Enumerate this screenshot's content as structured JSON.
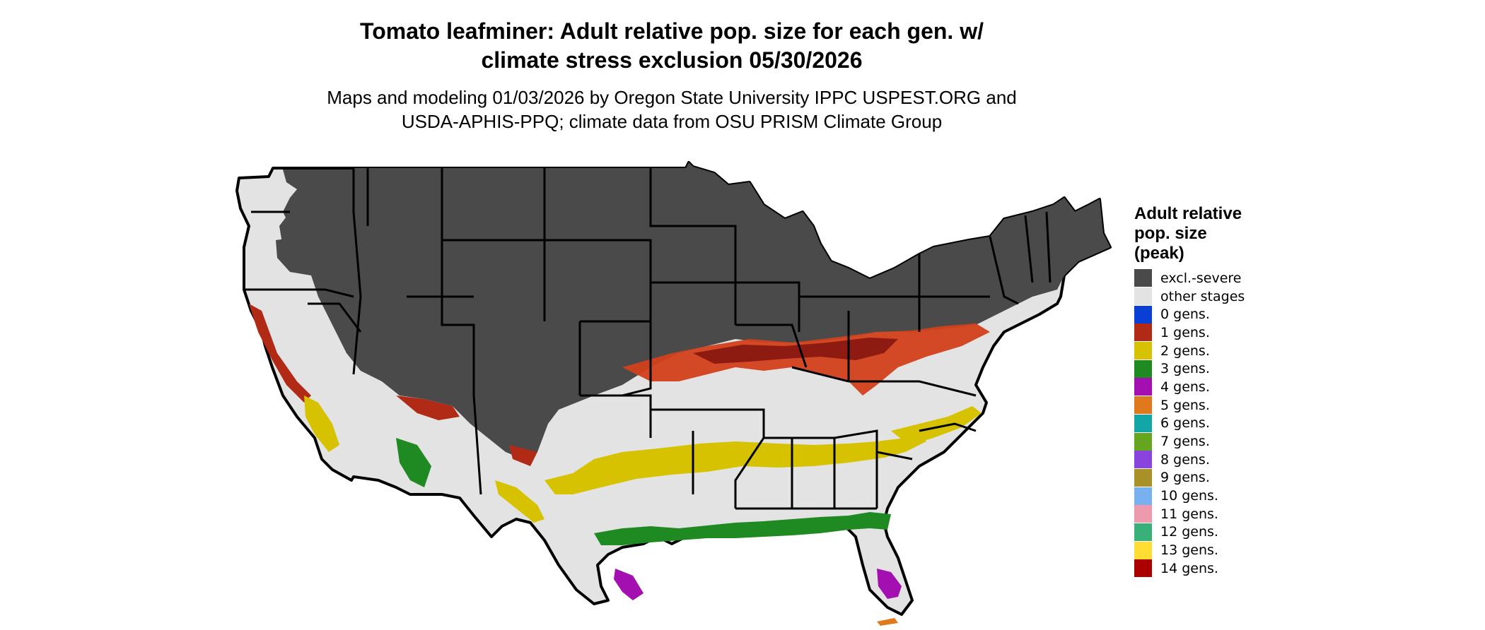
{
  "title": {
    "line1": "Tomato leafminer: Adult relative pop. size for each gen. w/",
    "line2": "climate stress exclusion 05/30/2026"
  },
  "subtitle": {
    "line1": "Maps and modeling 01/03/2026 by Oregon State University IPPC USPEST.ORG and",
    "line2": "USDA-APHIS-PPQ; climate data from OSU PRISM Climate Group"
  },
  "legend": {
    "title_lines": [
      "Adult relative",
      "pop. size",
      "(peak)"
    ],
    "items": [
      {
        "label": "excl.-severe",
        "color": "#4a4a4a"
      },
      {
        "label": "other stages",
        "color": "#e3e3e3"
      },
      {
        "label": "0 gens.",
        "color": "#0a3fd6"
      },
      {
        "label": "1 gens.",
        "color": "#b02a16"
      },
      {
        "label": "2 gens.",
        "color": "#d6c200"
      },
      {
        "label": "3 gens.",
        "color": "#1f8a22"
      },
      {
        "label": "4 gens.",
        "color": "#a30fb0"
      },
      {
        "label": "5 gens.",
        "color": "#e0781c"
      },
      {
        "label": "6 gens.",
        "color": "#12a6a6"
      },
      {
        "label": "7 gens.",
        "color": "#66a61e"
      },
      {
        "label": "8 gens.",
        "color": "#8844dd"
      },
      {
        "label": "9 gens.",
        "color": "#a89228"
      },
      {
        "label": "10 gens.",
        "color": "#78b0f0"
      },
      {
        "label": "11 gens.",
        "color": "#ee9aae"
      },
      {
        "label": "12 gens.",
        "color": "#38b07a"
      },
      {
        "label": "13 gens.",
        "color": "#ffdd33"
      },
      {
        "label": "14 gens.",
        "color": "#aa0000"
      }
    ]
  }
}
